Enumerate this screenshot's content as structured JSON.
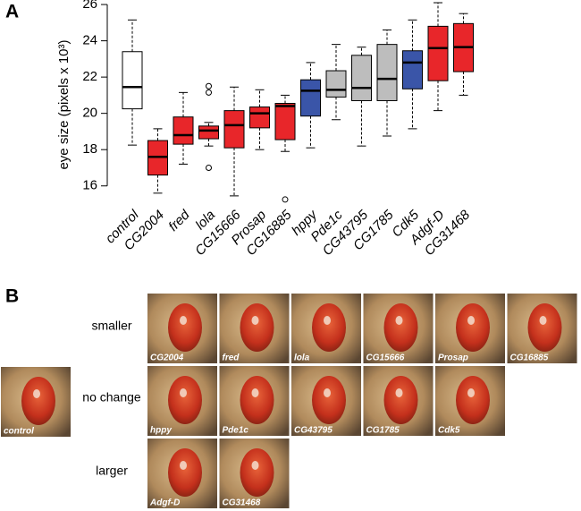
{
  "chart_data": {
    "type": "box",
    "panel_label": "A",
    "y_label": "eye size (pixels x 10³)",
    "ylim": [
      15,
      26.2
    ],
    "yticks": [
      16,
      18,
      20,
      22,
      24,
      26
    ],
    "boxes": [
      {
        "name": "control",
        "color": "#ffffff",
        "whislo": 18.25,
        "q1": 20.25,
        "med": 21.45,
        "q3": 23.4,
        "whishi": 25.15,
        "fliers": []
      },
      {
        "name": "CG2004",
        "color": "#e8262a",
        "whislo": 15.6,
        "q1": 16.6,
        "med": 17.6,
        "q3": 18.5,
        "whishi": 19.15,
        "fliers": []
      },
      {
        "name": "fred",
        "color": "#e8262a",
        "whislo": 17.2,
        "q1": 18.3,
        "med": 18.8,
        "q3": 19.8,
        "whishi": 21.15,
        "fliers": []
      },
      {
        "name": "lola",
        "color": "#e8262a",
        "whislo": 18.2,
        "q1": 18.6,
        "med": 19.05,
        "q3": 19.3,
        "whishi": 19.5,
        "fliers": [
          21.5,
          21.15,
          17.0
        ]
      },
      {
        "name": "CG15666",
        "color": "#e8262a",
        "whislo": 15.45,
        "q1": 18.1,
        "med": 19.35,
        "q3": 20.15,
        "whishi": 21.45,
        "fliers": []
      },
      {
        "name": "Prosap",
        "color": "#e8262a",
        "whislo": 18.0,
        "q1": 19.2,
        "med": 20.0,
        "q3": 20.35,
        "whishi": 21.3,
        "fliers": []
      },
      {
        "name": "CG16885",
        "color": "#e8262a",
        "whislo": 17.9,
        "q1": 18.55,
        "med": 20.4,
        "q3": 20.55,
        "whishi": 21.0,
        "fliers": [
          15.25
        ]
      },
      {
        "name": "hppy",
        "color": "#3a55a8",
        "whislo": 18.1,
        "q1": 19.85,
        "med": 21.25,
        "q3": 21.85,
        "whishi": 22.8,
        "fliers": []
      },
      {
        "name": "Pde1c",
        "color": "#bdbdbd",
        "whislo": 19.65,
        "q1": 20.9,
        "med": 21.3,
        "q3": 22.35,
        "whishi": 23.8,
        "fliers": []
      },
      {
        "name": "CG43795",
        "color": "#bdbdbd",
        "whislo": 18.2,
        "q1": 20.7,
        "med": 21.4,
        "q3": 23.2,
        "whishi": 23.65,
        "fliers": []
      },
      {
        "name": "CG1785",
        "color": "#bdbdbd",
        "whislo": 18.75,
        "q1": 20.7,
        "med": 21.9,
        "q3": 23.8,
        "whishi": 24.6,
        "fliers": []
      },
      {
        "name": "Cdk5",
        "color": "#3a55a8",
        "whislo": 19.15,
        "q1": 21.35,
        "med": 22.8,
        "q3": 23.45,
        "whishi": 25.15,
        "fliers": []
      },
      {
        "name": "Adgf-D",
        "color": "#e8262a",
        "whislo": 20.15,
        "q1": 21.8,
        "med": 23.6,
        "q3": 24.8,
        "whishi": 26.1,
        "fliers": []
      },
      {
        "name": "CG31468",
        "color": "#e8262a",
        "whislo": 21.0,
        "q1": 22.3,
        "med": 23.65,
        "q3": 24.95,
        "whishi": 25.5,
        "fliers": []
      }
    ]
  },
  "panel_b": {
    "panel_label": "B",
    "control": "control",
    "rows": [
      {
        "label": "smaller",
        "images": [
          "CG2004",
          "fred",
          "lola",
          "CG15666",
          "Prosap",
          "CG16885"
        ]
      },
      {
        "label": "no change",
        "images": [
          "hppy",
          "Pde1c",
          "CG43795",
          "CG1785",
          "Cdk5"
        ]
      },
      {
        "label": "larger",
        "images": [
          "Adgf-D",
          "CG31468"
        ]
      }
    ]
  }
}
